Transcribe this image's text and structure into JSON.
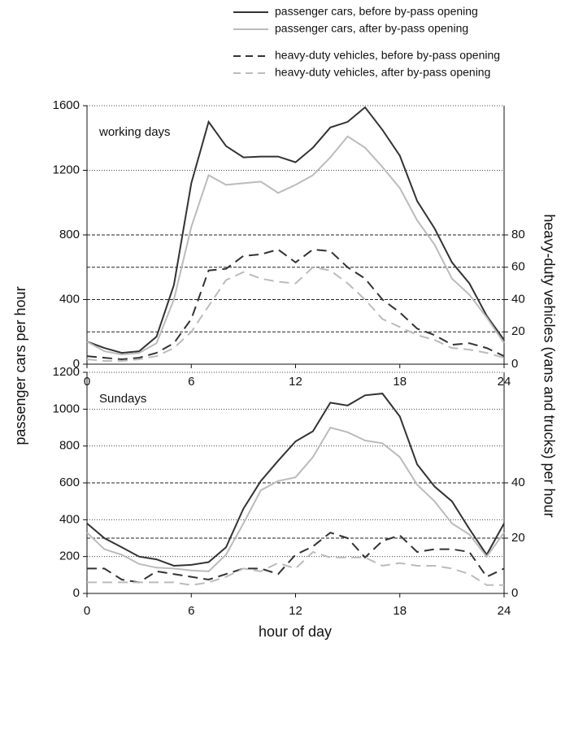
{
  "chart_data": [
    {
      "type": "line",
      "annotation": "working days",
      "ylabel": "passenger cars per hour",
      "y2label": "heavy-duty vehicles (vans and trucks) per hour",
      "x": [
        0,
        1,
        2,
        3,
        4,
        5,
        6,
        7,
        8,
        9,
        10,
        11,
        12,
        13,
        14,
        15,
        16,
        17,
        18,
        19,
        20,
        21,
        22,
        23,
        24
      ],
      "xlim": [
        0,
        24
      ],
      "xticks": [
        0,
        6,
        12,
        18,
        24
      ],
      "ylim": [
        0,
        1600
      ],
      "yticks": [
        0,
        400,
        800,
        1200,
        1600
      ],
      "y2lim": [
        0,
        160
      ],
      "y2ticks": [
        0,
        20,
        40,
        60,
        80
      ],
      "grid": true,
      "legend": "top-right",
      "series": [
        {
          "name": "passenger cars, before by-pass opening",
          "color": "#333333",
          "line_style": "solid",
          "values": [
            140,
            100,
            70,
            80,
            170,
            490,
            1120,
            1500,
            1350,
            1280,
            1285,
            1285,
            1250,
            1340,
            1465,
            1500,
            1590,
            1450,
            1290,
            1010,
            840,
            630,
            500,
            300,
            150
          ]
        },
        {
          "name": "passenger cars, after by-pass opening",
          "color": "#bbbbbb",
          "line_style": "solid",
          "values": [
            140,
            80,
            60,
            70,
            130,
            400,
            850,
            1170,
            1110,
            1120,
            1130,
            1060,
            1110,
            1170,
            1280,
            1410,
            1340,
            1220,
            1090,
            890,
            740,
            530,
            430,
            290,
            130
          ]
        },
        {
          "name": "heavy-duty vehicles, before by-pass opening",
          "color": "#333333",
          "line_style": "dashed",
          "axis": "y2",
          "values": [
            5,
            4,
            3,
            4,
            7,
            13,
            28,
            58,
            59,
            67,
            68,
            71,
            63,
            71,
            70,
            60,
            53,
            40,
            32,
            22,
            18,
            12,
            13,
            10,
            5
          ]
        },
        {
          "name": "heavy-duty vehicles, after by-pass opening",
          "color": "#bbbbbb",
          "line_style": "dashed",
          "axis": "y2",
          "values": [
            3,
            2,
            2,
            3,
            5,
            10,
            20,
            36,
            52,
            57,
            53,
            51,
            50,
            60,
            58,
            50,
            40,
            28,
            23,
            18,
            15,
            10,
            9,
            7,
            4
          ]
        }
      ]
    },
    {
      "type": "line",
      "annotation": "Sundays",
      "xlabel": "hour of day",
      "x": [
        0,
        1,
        2,
        3,
        4,
        5,
        6,
        7,
        8,
        9,
        10,
        11,
        12,
        13,
        14,
        15,
        16,
        17,
        18,
        19,
        20,
        21,
        22,
        23,
        24
      ],
      "xlim": [
        0,
        24
      ],
      "xticks": [
        0,
        6,
        12,
        18,
        24
      ],
      "ylim": [
        0,
        1200
      ],
      "yticks": [
        0,
        200,
        400,
        600,
        800,
        1000,
        1200
      ],
      "y2lim": [
        0,
        80
      ],
      "y2ticks": [
        0,
        20,
        40
      ],
      "grid": true,
      "series": [
        {
          "color": "#333333",
          "line_style": "solid",
          "values": [
            380,
            300,
            250,
            200,
            185,
            150,
            155,
            170,
            250,
            460,
            610,
            720,
            825,
            880,
            1035,
            1020,
            1075,
            1085,
            960,
            700,
            580,
            500,
            350,
            210,
            380
          ]
        },
        {
          "color": "#bbbbbb",
          "line_style": "solid",
          "values": [
            330,
            240,
            210,
            160,
            140,
            135,
            125,
            120,
            210,
            380,
            560,
            610,
            630,
            740,
            900,
            875,
            830,
            815,
            740,
            590,
            500,
            380,
            320,
            200,
            330
          ]
        },
        {
          "color": "#333333",
          "line_style": "dashed",
          "axis": "y2",
          "values": [
            9,
            9,
            5,
            4,
            8,
            7,
            6,
            5,
            7,
            9,
            9,
            7,
            14,
            17,
            22,
            20,
            13,
            19,
            21,
            15,
            16,
            16,
            15,
            6,
            9
          ]
        },
        {
          "color": "#bbbbbb",
          "line_style": "dashed",
          "axis": "y2",
          "values": [
            4,
            4,
            4,
            4,
            4,
            4,
            3,
            4,
            6,
            9,
            8,
            11,
            9,
            15,
            13,
            13,
            13,
            10,
            11,
            10,
            10,
            9,
            7,
            3,
            3
          ]
        }
      ]
    }
  ]
}
